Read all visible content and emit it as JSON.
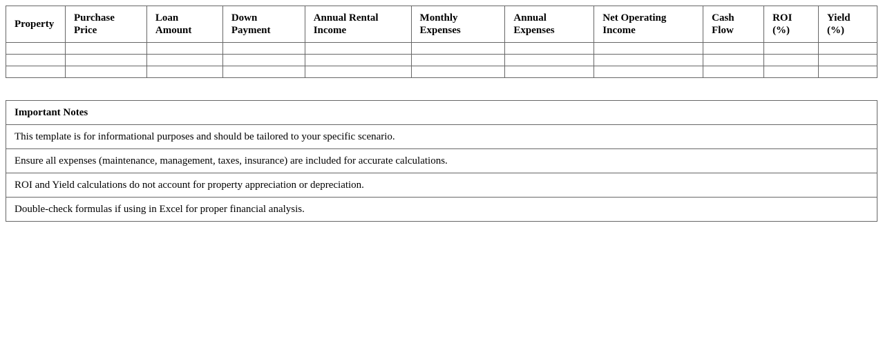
{
  "table": {
    "headers": [
      "Property",
      "Purchase Price",
      "Loan Amount",
      "Down Payment",
      "Annual Rental Income",
      "Monthly Expenses",
      "Annual Expenses",
      "Net Operating Income",
      "Cash Flow",
      "ROI (%)",
      "Yield (%)"
    ],
    "row_count": 3
  },
  "notes": {
    "title": "Important Notes",
    "items": [
      "This template is for informational purposes and should be tailored to your specific scenario.",
      "Ensure all expenses (maintenance, management, taxes, insurance) are included for accurate calculations.",
      "ROI and Yield calculations do not account for property appreciation or depreciation.",
      "Double-check formulas if using in Excel for proper financial analysis."
    ]
  }
}
